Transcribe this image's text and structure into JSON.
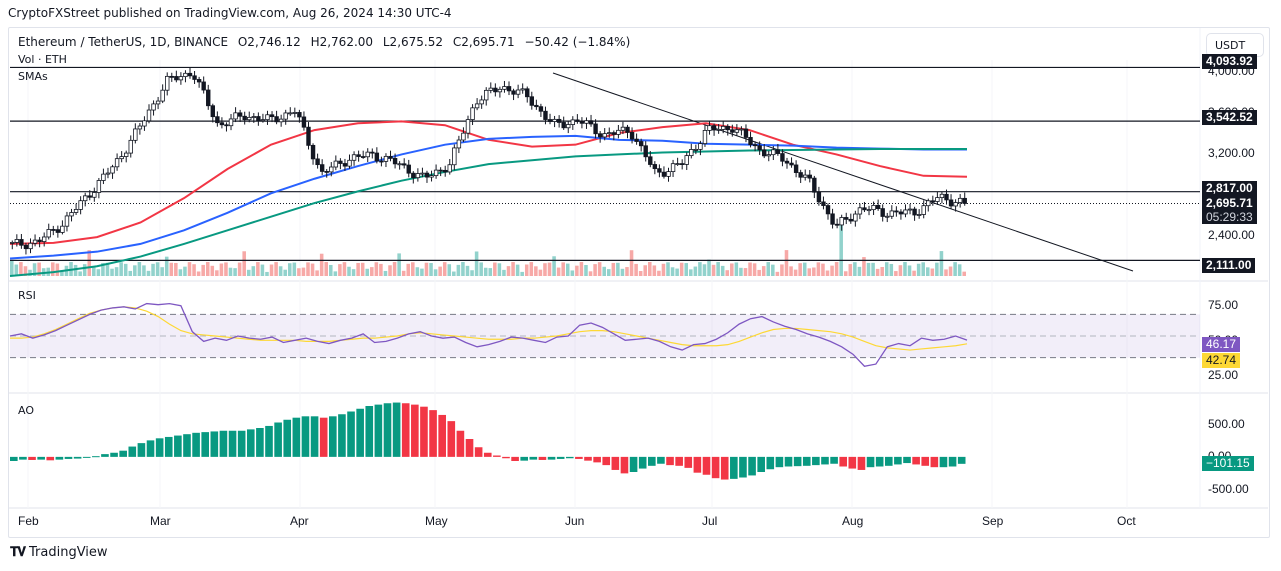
{
  "publisher": "CryptoFXStreet published on TradingView.com, Aug 26, 2024 14:30 UTC-4",
  "header": {
    "symbol": "Ethereum / TetherUS, 1D, BINANCE",
    "open": "O2,746.12",
    "high": "H2,762.00",
    "low": "L2,675.52",
    "close": "C2,695.71",
    "change": "−50.42 (−1.84%)",
    "vol_label": "Vol · ETH",
    "sma_label": "SMAs",
    "currency_button": "USDT"
  },
  "price_axis": {
    "ticks": [
      "4,000.00",
      "3,600.00",
      "3,200.00",
      "2,400.00"
    ],
    "labels": {
      "top_level": "4,093.92",
      "resistance_1": "3,542.52",
      "resistance_2": "2,817.00",
      "last_price": "2,695.71",
      "countdown": "05:29:33",
      "support": "2,111.00"
    }
  },
  "rsi": {
    "label": "RSI",
    "ticks": [
      "75.00",
      "50.00",
      "25.00"
    ],
    "value": "46.17",
    "ma_value": "42.74"
  },
  "ao": {
    "label": "AO",
    "ticks": [
      "500.00",
      "0.00",
      "-500.00"
    ],
    "value": "−101.15"
  },
  "time_axis": [
    "Feb",
    "Mar",
    "Apr",
    "May",
    "Jun",
    "Jul",
    "Aug",
    "Sep",
    "Oct"
  ],
  "footer_brand": "TradingView",
  "colors": {
    "up": "#089981",
    "down": "#f23645",
    "sma50": "#f23645",
    "sma100": "#2962ff",
    "sma200": "#089981",
    "rsi": "#7e57c2",
    "rsi_ma": "#fdd835",
    "vol_up": "#92d2cc",
    "vol_down": "#f7a9a7"
  },
  "chart_data": {
    "type": "candlestick",
    "title": "Ethereum / TetherUS, 1D, BINANCE",
    "ylim": [
      1950,
      4150
    ],
    "horizontal_levels": [
      4093.92,
      3542.52,
      2817.0,
      2111.0
    ],
    "trendline": {
      "from": [
        "2024-05-27",
        3980
      ],
      "to": [
        "2024-09-30",
        2100
      ]
    },
    "last_price": 2695.71,
    "close_path": [
      {
        "d": "Jan 27",
        "c": 2270
      },
      {
        "d": "Feb 3",
        "c": 2300
      },
      {
        "d": "Feb 10",
        "c": 2500
      },
      {
        "d": "Feb 17",
        "c": 2800
      },
      {
        "d": "Feb 24",
        "c": 3100
      },
      {
        "d": "Mar 3",
        "c": 3500
      },
      {
        "d": "Mar 10",
        "c": 3950
      },
      {
        "d": "Mar 13",
        "c": 4050
      },
      {
        "d": "Mar 18",
        "c": 3500
      },
      {
        "d": "Mar 25",
        "c": 3600
      },
      {
        "d": "Apr 1",
        "c": 3550
      },
      {
        "d": "Apr 8",
        "c": 3650
      },
      {
        "d": "Apr 13",
        "c": 3000
      },
      {
        "d": "Apr 20",
        "c": 3150
      },
      {
        "d": "Apr 27",
        "c": 3200
      },
      {
        "d": "May 4",
        "c": 3100
      },
      {
        "d": "May 12",
        "c": 2950
      },
      {
        "d": "May 19",
        "c": 3100
      },
      {
        "d": "May 21",
        "c": 3750
      },
      {
        "d": "May 27",
        "c": 3900
      },
      {
        "d": "Jun 3",
        "c": 3800
      },
      {
        "d": "Jun 10",
        "c": 3500
      },
      {
        "d": "Jun 17",
        "c": 3550
      },
      {
        "d": "Jun 24",
        "c": 3400
      },
      {
        "d": "Jul 1",
        "c": 3450
      },
      {
        "d": "Jul 5",
        "c": 3000
      },
      {
        "d": "Jul 10",
        "c": 3100
      },
      {
        "d": "Jul 15",
        "c": 3450
      },
      {
        "d": "Jul 22",
        "c": 3480
      },
      {
        "d": "Jul 27",
        "c": 3250
      },
      {
        "d": "Aug 1",
        "c": 3150
      },
      {
        "d": "Aug 3",
        "c": 2900
      },
      {
        "d": "Aug 5",
        "c": 2450
      },
      {
        "d": "Aug 8",
        "c": 2650
      },
      {
        "d": "Aug 12",
        "c": 2600
      },
      {
        "d": "Aug 18",
        "c": 2600
      },
      {
        "d": "Aug 23",
        "c": 2760
      },
      {
        "d": "Aug 26",
        "c": 2695.71
      }
    ],
    "sma_series": [
      {
        "name": "SMA 50",
        "values": [
          2280,
          2290,
          2350,
          2500,
          2750,
          3050,
          3300,
          3450,
          3520,
          3540,
          3500,
          3350,
          3280,
          3300,
          3420,
          3480,
          3520,
          3450,
          3300,
          3200,
          3080,
          2980,
          2970
        ]
      },
      {
        "name": "SMA 100",
        "values": [
          2130,
          2160,
          2200,
          2280,
          2420,
          2600,
          2800,
          2950,
          3080,
          3200,
          3300,
          3360,
          3380,
          3390,
          3350,
          3340,
          3310,
          3300,
          3290,
          3270,
          3260,
          3250,
          3250
        ]
      },
      {
        "name": "SMA 200",
        "values": [
          1950,
          1990,
          2050,
          2150,
          2280,
          2420,
          2560,
          2700,
          2820,
          2930,
          3020,
          3100,
          3140,
          3180,
          3200,
          3220,
          3230,
          3240,
          3245,
          3250,
          3255,
          3255,
          3255
        ]
      }
    ],
    "rsi_series": {
      "name": "RSI 14",
      "ylim": [
        0,
        100
      ],
      "bands": [
        30,
        50,
        70
      ],
      "values": [
        50,
        52,
        48,
        51,
        55,
        60,
        65,
        70,
        74,
        76,
        77,
        75,
        80,
        79,
        80,
        78,
        54,
        45,
        48,
        46,
        50,
        48,
        47,
        49,
        44,
        46,
        48,
        45,
        43,
        46,
        48,
        52,
        44,
        45,
        48,
        52,
        54,
        50,
        48,
        49,
        44,
        40,
        42,
        45,
        49,
        48,
        46,
        44,
        49,
        50,
        60,
        62,
        58,
        52,
        46,
        47,
        48,
        45,
        40,
        37,
        42,
        43,
        47,
        53,
        61,
        66,
        68,
        63,
        59,
        56,
        52,
        49,
        45,
        40,
        33,
        22,
        24,
        40,
        43,
        41,
        48,
        46,
        47,
        50,
        46.17
      ],
      "ma_values": [
        48,
        48,
        49,
        52,
        56,
        61,
        66,
        71,
        74,
        76,
        77,
        76,
        73,
        68,
        61,
        55,
        52,
        51,
        50,
        49,
        48,
        47,
        46,
        46,
        46,
        46,
        45,
        45,
        45,
        46,
        47,
        48,
        48,
        49,
        50,
        52,
        53,
        52,
        51,
        50,
        49,
        48,
        47,
        47,
        47,
        48,
        48,
        49,
        50,
        52,
        54,
        55,
        55,
        54,
        52,
        50,
        48,
        46,
        44,
        42,
        41,
        41,
        41,
        42,
        45,
        49,
        53,
        56,
        57,
        57,
        56,
        55,
        54,
        52,
        49,
        45,
        41,
        39,
        38,
        37,
        38,
        39,
        40,
        41,
        42.74
      ]
    },
    "ao_series": {
      "name": "Awesome Oscillator",
      "ylim": [
        -700,
        900
      ],
      "values": [
        -60,
        -40,
        -45,
        -40,
        -50,
        -40,
        -30,
        -25,
        -10,
        10,
        40,
        60,
        90,
        150,
        200,
        240,
        270,
        290,
        310,
        330,
        350,
        360,
        370,
        380,
        380,
        380,
        400,
        420,
        450,
        500,
        540,
        570,
        590,
        590,
        570,
        590,
        620,
        660,
        700,
        740,
        760,
        780,
        790,
        780,
        760,
        730,
        680,
        610,
        520,
        380,
        260,
        140,
        60,
        20,
        -20,
        -60,
        -55,
        -40,
        -45,
        -40,
        -30,
        -20,
        -30,
        -55,
        -80,
        -120,
        -190,
        -240,
        -220,
        -170,
        -130,
        -100,
        -120,
        -130,
        -160,
        -230,
        -260,
        -310,
        -330,
        -320,
        -300,
        -270,
        -220,
        -180,
        -150,
        -140,
        -135,
        -130,
        -120,
        -110,
        -100,
        -140,
        -170,
        -190,
        -150,
        -140,
        -130,
        -110,
        -90,
        -110,
        -130,
        -150,
        -150,
        -140,
        -101.15
      ]
    }
  }
}
